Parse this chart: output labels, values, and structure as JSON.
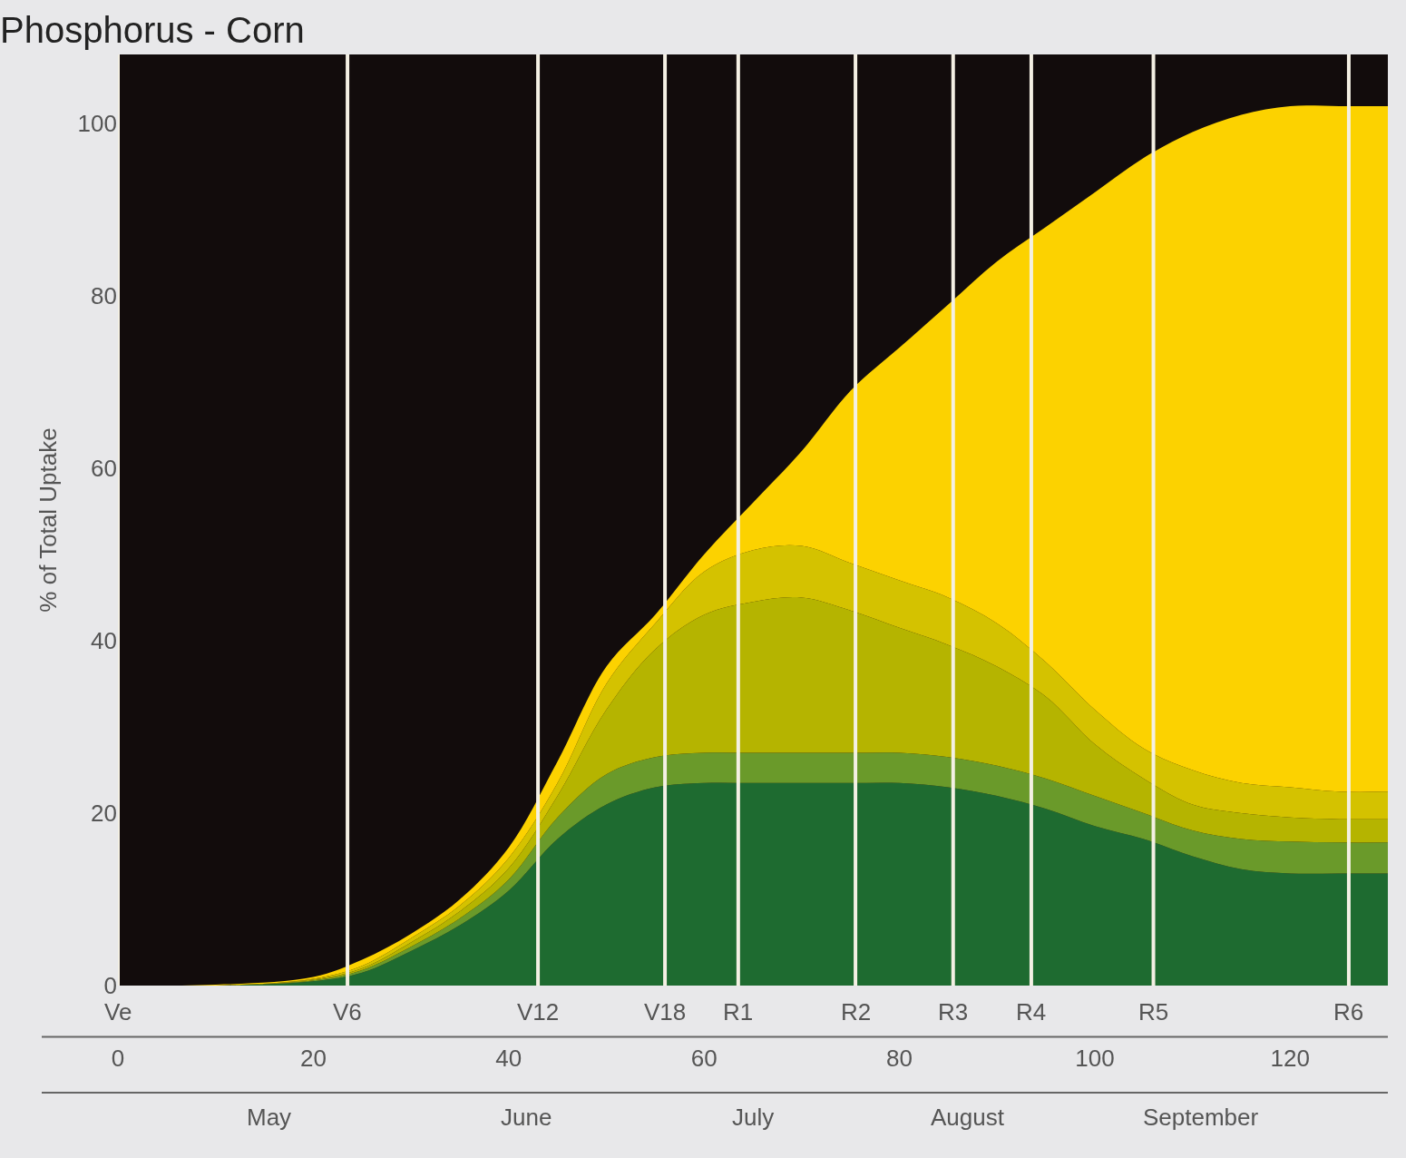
{
  "chart_data": {
    "type": "area",
    "stacked": true,
    "title": "Phosphorus - Corn",
    "ylabel": "% of Total Uptake",
    "x": [
      0,
      10,
      20,
      25,
      30,
      35,
      40,
      45,
      50,
      55,
      60,
      65,
      70,
      75,
      80,
      85,
      90,
      95,
      100,
      105,
      110,
      115,
      120,
      125,
      130
    ],
    "series": [
      {
        "color": "#1e6b30",
        "values": [
          0,
          0,
          0.5,
          1.5,
          4,
          7,
          11,
          17,
          21,
          23,
          23.5,
          23.5,
          23.5,
          23.5,
          23.5,
          23,
          22,
          20.5,
          18.5,
          17,
          15,
          13.5,
          13,
          13,
          13
        ]
      },
      {
        "color": "#6a9a2a",
        "values": [
          0,
          0,
          0.1,
          0.3,
          0.5,
          0.8,
          1.3,
          2.5,
          3.5,
          3.5,
          3.5,
          3.5,
          3.5,
          3.5,
          3.5,
          3.5,
          3.5,
          3.5,
          3.5,
          3,
          3,
          3.5,
          3.7,
          3.6,
          3.6
        ]
      },
      {
        "color": "#b5b400",
        "values": [
          0,
          0,
          0.1,
          0.2,
          0.5,
          0.8,
          1.3,
          2.5,
          7.5,
          12.5,
          16,
          17.5,
          18,
          16.5,
          14.5,
          13,
          11.5,
          9.5,
          6,
          4,
          3,
          3,
          2.8,
          2.7,
          2.7
        ]
      },
      {
        "color": "#d4c200",
        "values": [
          0,
          0,
          0.1,
          0.3,
          0.5,
          0.7,
          1.2,
          1.5,
          3,
          3,
          5,
          6,
          6,
          5.5,
          5.5,
          5.5,
          5,
          4,
          4,
          3.5,
          4,
          3.5,
          3.5,
          3.2,
          3.2
        ]
      },
      {
        "color": "#fcd200",
        "values": [
          0,
          0.1,
          0.2,
          0.7,
          0.5,
          0.7,
          1.2,
          2.5,
          2,
          1,
          2,
          5.5,
          11,
          20,
          27,
          34,
          42,
          50.5,
          60,
          68.5,
          74,
          77.5,
          79,
          79.5,
          79.5
        ]
      }
    ],
    "xlim": [
      0,
      130
    ],
    "ylim": [
      0,
      108
    ],
    "xticks": [
      0,
      20,
      40,
      60,
      80,
      100,
      120
    ],
    "yticks": [
      0,
      20,
      40,
      60,
      80,
      100
    ],
    "ref_lines": [
      {
        "axis": "x",
        "value": 0,
        "label": "Ve",
        "color": "#f4f0e4"
      },
      {
        "axis": "x",
        "value": 23.5,
        "label": "V6",
        "color": "#f4f0e4"
      },
      {
        "axis": "x",
        "value": 43,
        "label": "V12",
        "color": "#f4f0e4"
      },
      {
        "axis": "x",
        "value": 56,
        "label": "V18",
        "color": "#f4f0e4"
      },
      {
        "axis": "x",
        "value": 63.5,
        "label": "R1",
        "color": "#f4f0e4"
      },
      {
        "axis": "x",
        "value": 75.5,
        "label": "R2",
        "color": "#f4f0e4"
      },
      {
        "axis": "x",
        "value": 85.5,
        "label": "R3",
        "color": "#f4f0e4"
      },
      {
        "axis": "x",
        "value": 93.5,
        "label": "R4",
        "color": "#f4f0e4"
      },
      {
        "axis": "x",
        "value": 106,
        "label": "R5",
        "color": "#f4f0e4"
      },
      {
        "axis": "x",
        "value": 126,
        "label": "R6",
        "color": "#f4f0e4"
      }
    ],
    "annotations": [
      "May",
      "June",
      "July",
      "August",
      "September"
    ],
    "grid": false
  }
}
